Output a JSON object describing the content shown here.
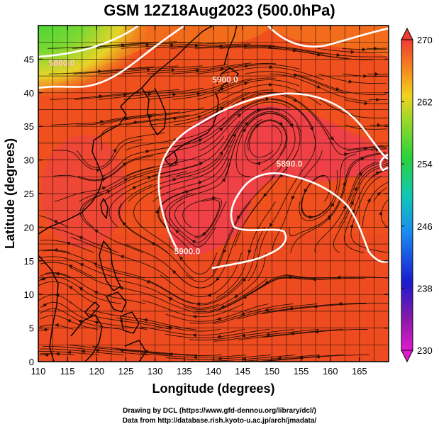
{
  "title": "GSM 12Z18Aug2023 (500.0hPa)",
  "x_axis": {
    "label": "Longitude (degrees)",
    "range": [
      110,
      170
    ],
    "ticks": [
      "110",
      "115",
      "120",
      "125",
      "130",
      "135",
      "140",
      "145",
      "150",
      "155",
      "160",
      "165"
    ]
  },
  "y_axis": {
    "label": "Latitude (degrees)",
    "range": [
      0,
      50
    ],
    "ticks": [
      "0",
      "5",
      "10",
      "15",
      "20",
      "25",
      "30",
      "35",
      "40",
      "45"
    ]
  },
  "colorbar": {
    "range": [
      230,
      270
    ],
    "labels": [
      "230",
      "238",
      "246",
      "254",
      "262",
      "270"
    ]
  },
  "contours": [
    {
      "label": "5900.0",
      "label_at": [
        142,
        41.5
      ]
    },
    {
      "label": "5890.0",
      "label_at": [
        153,
        29
      ]
    },
    {
      "label": "5900.0",
      "label_at": [
        135.5,
        16
      ]
    },
    {
      "label": "5800.0",
      "label_at": [
        114,
        44
      ]
    }
  ],
  "credits": {
    "line1": "Drawing by DCL (https://www.gfd-dennou.org/library/dcl/)",
    "line2": "Data from http://database.rish.kyoto-u.ac.jp/arch/jmadata/"
  },
  "colors": {
    "field_base": "#f0501e",
    "ridge_core": "#ee3f4a",
    "green_cold": "#37d438",
    "contour": "#ffffff"
  }
}
